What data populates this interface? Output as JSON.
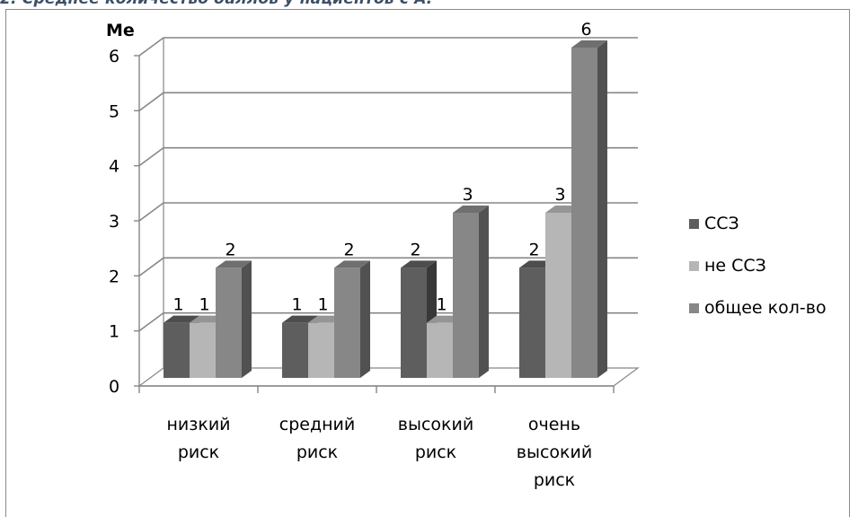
{
  "caption": "2. Среднее количество баллов у пациентов с А.",
  "chart_data": {
    "type": "bar",
    "ylabel": "Me",
    "ylim": [
      0,
      6
    ],
    "yticks": [
      "0",
      "1",
      "2",
      "3",
      "4",
      "5",
      "6"
    ],
    "categories": [
      [
        "низкий",
        "риск"
      ],
      [
        "средний",
        "риск"
      ],
      [
        "высокий",
        "риск"
      ],
      [
        "очень",
        "высокий",
        "риск"
      ]
    ],
    "series": [
      {
        "name": "ССЗ",
        "values": [
          1,
          1,
          2,
          2
        ],
        "color": "#5e5e5e"
      },
      {
        "name": "не ССЗ",
        "values": [
          1,
          1,
          1,
          3
        ],
        "color": "#b6b6b6"
      },
      {
        "name": "общее кол-во",
        "values": [
          2,
          2,
          3,
          6
        ],
        "color": "#878787"
      }
    ],
    "data_labels": [
      [
        "1",
        "1",
        "2"
      ],
      [
        "1",
        "1",
        "2"
      ],
      [
        "2",
        "1",
        "3"
      ],
      [
        "2",
        "3",
        "6"
      ]
    ],
    "grid": true,
    "legend": "right"
  }
}
